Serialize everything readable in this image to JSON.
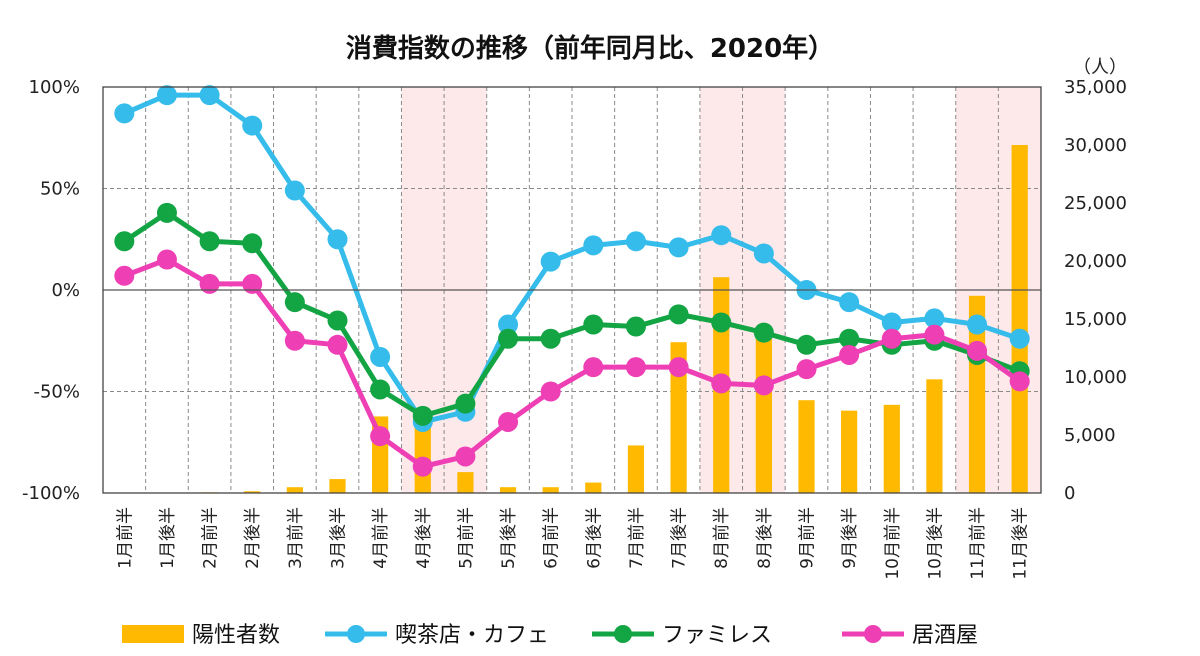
{
  "chart_data": {
    "type": "bar+line",
    "title": "消費指数の推移（前年同月比、2020年）",
    "left_axis": {
      "ylim": [
        -100,
        100
      ],
      "ticks": [
        100,
        50,
        0,
        -50,
        -100
      ],
      "tick_labels": [
        "100%",
        "50%",
        "0%",
        "-50%",
        "-100%"
      ]
    },
    "right_axis": {
      "unit_label": "（人）",
      "ylim": [
        0,
        35000
      ],
      "ticks": [
        35000,
        30000,
        25000,
        20000,
        15000,
        10000,
        5000,
        0
      ],
      "tick_labels": [
        "35,000",
        "30,000",
        "25,000",
        "20,000",
        "15,000",
        "10,000",
        "5,000",
        "0"
      ]
    },
    "categories": [
      "1月前半",
      "1月後半",
      "2月前半",
      "2月後半",
      "3月前半",
      "3月後半",
      "4月前半",
      "4月後半",
      "5月前半",
      "5月後半",
      "6月前半",
      "6月後半",
      "7月前半",
      "7月後半",
      "8月前半",
      "8月後半",
      "9月前半",
      "9月後半",
      "10月前半",
      "10月後半",
      "11月前半",
      "11月後半"
    ],
    "shaded_periods": [
      [
        7,
        9
      ],
      [
        14,
        16
      ],
      [
        20,
        22
      ]
    ],
    "bars": {
      "name": "陽性者数",
      "color": "#FFB900",
      "axis": "right",
      "values": [
        0,
        30,
        60,
        150,
        500,
        1200,
        6600,
        6000,
        1800,
        500,
        500,
        900,
        4100,
        13000,
        18600,
        13500,
        8000,
        7100,
        7600,
        9800,
        17000,
        30000
      ]
    },
    "series": [
      {
        "name": "喫茶店・カフェ",
        "color": "#35BCEA",
        "axis": "left",
        "values": [
          87,
          96,
          96,
          81,
          49,
          25,
          -33,
          -65,
          -60,
          -17,
          14,
          22,
          24,
          21,
          27,
          18,
          0,
          -6,
          -16,
          -14,
          -17,
          -24
        ]
      },
      {
        "name": "ファミレス",
        "color": "#13A444",
        "axis": "left",
        "values": [
          24,
          38,
          24,
          23,
          -6,
          -15,
          -49,
          -62,
          -56,
          -24,
          -24,
          -17,
          -18,
          -12,
          -16,
          -21,
          -27,
          -24,
          -27,
          -25,
          -32,
          -40
        ]
      },
      {
        "name": "居酒屋",
        "color": "#EE3FB5",
        "axis": "left",
        "values": [
          7,
          15,
          3,
          3,
          -25,
          -27,
          -72,
          -87,
          -82,
          -65,
          -50,
          -38,
          -38,
          -38,
          -46,
          -47,
          -39,
          -32,
          -24,
          -22,
          -30,
          -45
        ]
      }
    ],
    "legend": {
      "position": "bottom",
      "items": [
        "陽性者数",
        "喫茶店・カフェ",
        "ファミレス",
        "居酒屋"
      ]
    }
  }
}
